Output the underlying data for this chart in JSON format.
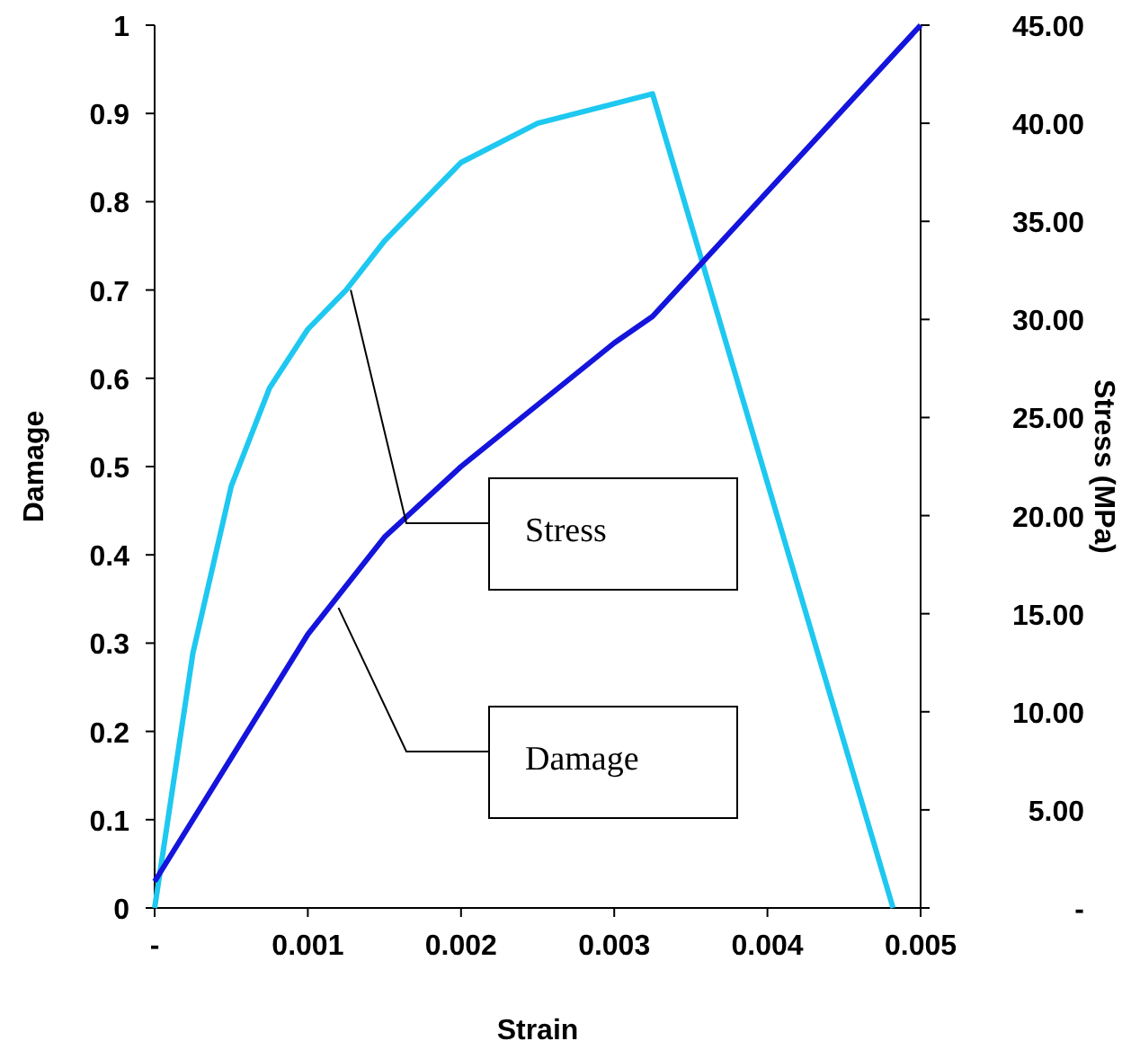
{
  "chart_data": {
    "type": "line",
    "xlabel": "Strain",
    "ylabel": "Damage",
    "y2label": "Stress (MPa)",
    "xlim": [
      0,
      0.005
    ],
    "xticks": [
      {
        "value": 0,
        "label": "-"
      },
      0.001,
      0.002,
      0.003,
      0.004,
      0.005
    ],
    "ylim": [
      0,
      1
    ],
    "yticks": [
      0,
      0.1,
      0.2,
      0.3,
      0.4,
      0.5,
      0.6,
      0.7,
      0.8,
      0.9,
      1
    ],
    "y2lim": [
      0,
      45
    ],
    "y2ticks": [
      {
        "value": 0,
        "label": "-"
      },
      {
        "value": 5,
        "label": "5.00"
      },
      {
        "value": 10,
        "label": "10.00"
      },
      {
        "value": 15,
        "label": "15.00"
      },
      {
        "value": 20,
        "label": "20.00"
      },
      {
        "value": 25,
        "label": "25.00"
      },
      {
        "value": 30,
        "label": "30.00"
      },
      {
        "value": 35,
        "label": "35.00"
      },
      {
        "value": 40,
        "label": "40.00"
      },
      {
        "value": 45,
        "label": "45.00"
      }
    ],
    "grid": false,
    "series": [
      {
        "color": "#1ec8f0",
        "axis": "y2",
        "x": [
          0,
          0.00025,
          0.0005,
          0.00075,
          0.001,
          0.00125,
          0.0015,
          0.00175,
          0.002,
          0.0025,
          0.003,
          0.00325,
          0.00482
        ],
        "values": [
          0,
          13,
          21.5,
          26.5,
          29.5,
          31.5,
          34,
          36,
          38,
          40,
          41,
          41.5,
          0
        ]
      },
      {
        "color": "#1414dc",
        "x": [
          0,
          0.0005,
          0.001,
          0.0015,
          0.002,
          0.0025,
          0.003,
          0.00325,
          0.005
        ],
        "values": [
          0.03,
          0.17,
          0.31,
          0.42,
          0.5,
          0.57,
          0.64,
          0.67,
          1.0
        ]
      }
    ],
    "annotations": [
      {
        "text": "Stress",
        "x": 0.00128,
        "y": 0.7
      },
      {
        "text": "Damage",
        "x": 0.0012,
        "y": 0.34
      }
    ]
  }
}
